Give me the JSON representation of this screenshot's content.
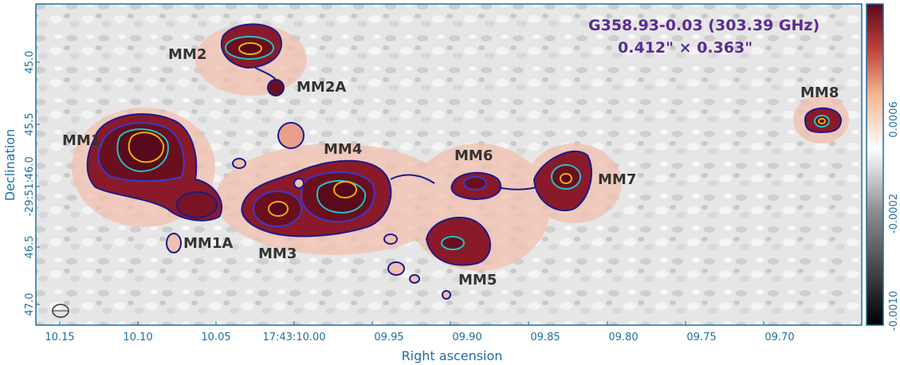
{
  "figure": {
    "title_line1": "G358.93-0.03 (303.39 GHz)",
    "title_line2": "0.412\" × 0.363\"",
    "colors": {
      "axis": "#1f6f9f",
      "title": "#5a2d91",
      "contour_outer": "#1a1a8c",
      "contour_mid": "#3a3ad0",
      "contour_inner": "#1fc4c4",
      "contour_peak": "#f0b000",
      "emission_core": "#6b0f1e",
      "emission_halo": "#e8a08a"
    },
    "x_axis": {
      "label": "Right ascension",
      "ticks": [
        "10.15",
        "10.10",
        "10.05",
        "17:43:10.00",
        "09.95",
        "09.90",
        "09.85",
        "09.80",
        "09.75",
        "09.70"
      ]
    },
    "y_axis": {
      "label": "Declination",
      "ticks": [
        "45.0",
        "45.5",
        "-29:51:46.0",
        "46.5",
        "47.0"
      ]
    },
    "colorbar": {
      "ticks": [
        "0.0006",
        "-0.0002",
        "-0.0010"
      ]
    },
    "sources": {
      "mm1": "MM1",
      "mm1a": "MM1A",
      "mm2": "MM2",
      "mm2a": "MM2A",
      "mm3": "MM3",
      "mm4": "MM4",
      "mm5": "MM5",
      "mm6": "MM6",
      "mm7": "MM7",
      "mm8": "MM8"
    }
  }
}
